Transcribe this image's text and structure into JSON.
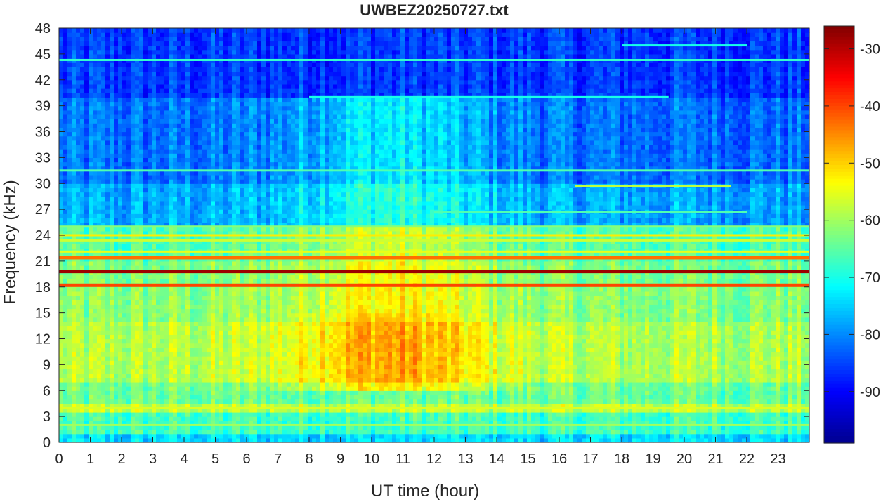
{
  "chart_data": {
    "type": "heatmap",
    "title": "UWBEZ20250727.txt",
    "xlabel": "UT time (hour)",
    "ylabel": "Frequency (kHz)",
    "xlim": [
      0,
      24
    ],
    "ylim": [
      0,
      48
    ],
    "x_ticks": [
      "0",
      "1",
      "2",
      "3",
      "4",
      "5",
      "6",
      "7",
      "8",
      "9",
      "10",
      "11",
      "12",
      "13",
      "14",
      "15",
      "16",
      "17",
      "18",
      "19",
      "20",
      "21",
      "22",
      "23"
    ],
    "y_ticks": [
      "0",
      "3",
      "6",
      "9",
      "12",
      "15",
      "18",
      "21",
      "24",
      "27",
      "30",
      "33",
      "36",
      "39",
      "42",
      "45",
      "48"
    ],
    "colorbar": {
      "colormap": "jet",
      "range": [
        -99,
        -26
      ],
      "ticks": [
        "-90",
        "-80",
        "-70",
        "-60",
        "-50",
        "-40",
        "-30"
      ]
    },
    "colormap_colors": [
      "#00008f",
      "#0000ff",
      "#00ffff",
      "#ffff00",
      "#ff0000",
      "#800000"
    ],
    "grid": false,
    "background_db": [
      {
        "f_from": 0,
        "f_to": 1,
        "db": -74
      },
      {
        "f_from": 1,
        "f_to": 3.5,
        "db": -67
      },
      {
        "f_from": 3.5,
        "f_to": 4.5,
        "db": -58
      },
      {
        "f_from": 4.5,
        "f_to": 7,
        "db": -64
      },
      {
        "f_from": 7,
        "f_to": 14,
        "db": -59
      },
      {
        "f_from": 14,
        "f_to": 18,
        "db": -62
      },
      {
        "f_from": 18,
        "f_to": 21,
        "db": -63
      },
      {
        "f_from": 21,
        "f_to": 25,
        "db": -66
      },
      {
        "f_from": 25,
        "f_to": 30,
        "db": -78
      },
      {
        "f_from": 30,
        "f_to": 40,
        "db": -82
      },
      {
        "f_from": 40,
        "f_to": 48,
        "db": -86
      }
    ],
    "daytime_enhancement": {
      "center_hour": 10.5,
      "width_hours": 3.2,
      "peak_db": 12,
      "f_from": 6,
      "f_to": 15
    },
    "transmitter_lines": [
      {
        "freq_khz": 19.8,
        "db": -28
      },
      {
        "freq_khz": 18.2,
        "db": -40
      },
      {
        "freq_khz": 21.4,
        "db": -43
      },
      {
        "freq_khz": 24.0,
        "db": -52
      },
      {
        "freq_khz": 22.1,
        "db": -55
      },
      {
        "freq_khz": 23.4,
        "db": -57
      },
      {
        "freq_khz": 25.0,
        "db": -62
      },
      {
        "freq_khz": 31.5,
        "db": -66
      },
      {
        "freq_khz": 44.3,
        "db": -68
      },
      {
        "freq_khz": 4.0,
        "db": -56
      },
      {
        "freq_khz": 2.0,
        "db": -60
      },
      {
        "freq_khz": 29.7,
        "db": -58,
        "t_from": 16.5,
        "t_to": 21.5
      },
      {
        "freq_khz": 46.0,
        "db": -70,
        "t_from": 18.0,
        "t_to": 22.0
      },
      {
        "freq_khz": 40.0,
        "db": -70,
        "t_from": 8.0,
        "t_to": 19.5
      },
      {
        "freq_khz": 26.7,
        "db": -66,
        "t_from": 12.0,
        "t_to": 22.0
      }
    ]
  }
}
